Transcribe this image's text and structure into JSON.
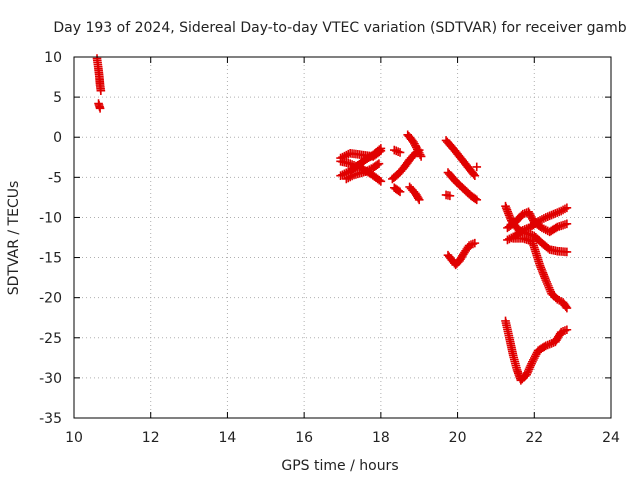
{
  "chart_data": {
    "type": "scatter",
    "title": "Day 193 of 2024, Sidereal Day-to-day VTEC variation (SDTVAR) for receiver gamb",
    "xlabel": "GPS time / hours",
    "ylabel": "SDTVAR / TECUs",
    "xlim": [
      10,
      24
    ],
    "ylim": [
      -35,
      10
    ],
    "xticks": [
      "10",
      "12",
      "14",
      "16",
      "18",
      "20",
      "22",
      "24"
    ],
    "yticks": [
      "10",
      "5",
      "0",
      "-5",
      "-10",
      "-15",
      "-20",
      "-25",
      "-30",
      "-35"
    ],
    "grid": true,
    "marker": "plus",
    "color": "#e00000",
    "tracks": [
      [
        [
          10.6,
          9.8
        ],
        [
          10.63,
          8.8
        ],
        [
          10.66,
          7.6
        ],
        [
          10.68,
          6.5
        ],
        [
          10.7,
          5.8
        ]
      ],
      [
        [
          10.64,
          4.2
        ],
        [
          10.68,
          3.6
        ]
      ],
      [
        [
          16.95,
          -2.6
        ],
        [
          17.2,
          -2.0
        ],
        [
          17.5,
          -2.2
        ],
        [
          17.8,
          -2.4
        ],
        [
          18.0,
          -1.7
        ]
      ],
      [
        [
          16.95,
          -4.8
        ],
        [
          17.2,
          -4.2
        ],
        [
          17.4,
          -3.5
        ],
        [
          17.6,
          -2.8
        ],
        [
          17.8,
          -2.2
        ],
        [
          18.0,
          -1.4
        ]
      ],
      [
        [
          16.95,
          -3.0
        ],
        [
          17.2,
          -3.3
        ],
        [
          17.5,
          -3.9
        ],
        [
          17.75,
          -4.6
        ],
        [
          18.0,
          -5.5
        ]
      ],
      [
        [
          17.1,
          -5.2
        ],
        [
          17.3,
          -4.7
        ],
        [
          17.6,
          -4.3
        ],
        [
          17.8,
          -3.8
        ],
        [
          17.95,
          -3.3
        ]
      ],
      [
        [
          18.35,
          -1.6
        ],
        [
          18.5,
          -1.9
        ]
      ],
      [
        [
          18.3,
          -5.2
        ],
        [
          18.45,
          -4.6
        ],
        [
          18.6,
          -3.8
        ],
        [
          18.75,
          -2.8
        ],
        [
          18.9,
          -2.0
        ],
        [
          19.0,
          -1.6
        ]
      ],
      [
        [
          18.7,
          0.3
        ],
        [
          18.85,
          -0.6
        ],
        [
          18.95,
          -1.5
        ],
        [
          19.05,
          -2.4
        ]
      ],
      [
        [
          18.35,
          -6.3
        ],
        [
          18.5,
          -6.8
        ]
      ],
      [
        [
          18.75,
          -6.2
        ],
        [
          18.9,
          -7.0
        ],
        [
          19.0,
          -7.8
        ]
      ],
      [
        [
          19.7,
          -0.4
        ],
        [
          19.9,
          -1.5
        ],
        [
          20.1,
          -2.7
        ],
        [
          20.3,
          -3.9
        ],
        [
          20.45,
          -4.8
        ]
      ],
      [
        [
          19.75,
          -4.4
        ],
        [
          19.95,
          -5.5
        ],
        [
          20.15,
          -6.4
        ],
        [
          20.35,
          -7.3
        ],
        [
          20.5,
          -7.8
        ]
      ],
      [
        [
          20.5,
          -3.7
        ]
      ],
      [
        [
          19.7,
          -7.2
        ],
        [
          19.8,
          -7.3
        ]
      ],
      [
        [
          19.75,
          -14.7
        ],
        [
          19.85,
          -15.3
        ],
        [
          19.95,
          -15.9
        ],
        [
          20.05,
          -15.4
        ],
        [
          20.15,
          -14.6
        ],
        [
          20.3,
          -13.5
        ],
        [
          20.45,
          -13.2
        ]
      ],
      [
        [
          21.25,
          -8.6
        ],
        [
          21.4,
          -10.4
        ],
        [
          21.6,
          -11.6
        ],
        [
          21.8,
          -12.0
        ],
        [
          22.0,
          -12.3
        ],
        [
          22.2,
          -13.2
        ],
        [
          22.4,
          -14.0
        ],
        [
          22.6,
          -14.2
        ],
        [
          22.85,
          -14.3
        ]
      ],
      [
        [
          21.3,
          -12.8
        ],
        [
          21.5,
          -12.3
        ],
        [
          21.7,
          -11.6
        ],
        [
          21.9,
          -11.2
        ],
        [
          22.1,
          -10.5
        ],
        [
          22.3,
          -10.0
        ],
        [
          22.5,
          -9.6
        ],
        [
          22.7,
          -9.2
        ],
        [
          22.85,
          -8.8
        ]
      ],
      [
        [
          21.3,
          -11.3
        ],
        [
          21.5,
          -10.6
        ],
        [
          21.7,
          -9.6
        ],
        [
          21.85,
          -9.3
        ],
        [
          22.0,
          -10.6
        ],
        [
          22.2,
          -11.3
        ],
        [
          22.4,
          -11.8
        ],
        [
          22.6,
          -11.2
        ],
        [
          22.85,
          -10.8
        ]
      ],
      [
        [
          21.45,
          -12.6
        ],
        [
          21.7,
          -12.6
        ],
        [
          21.95,
          -13.0
        ],
        [
          22.15,
          -16.0
        ],
        [
          22.3,
          -17.8
        ],
        [
          22.45,
          -19.5
        ],
        [
          22.6,
          -20.2
        ],
        [
          22.75,
          -20.6
        ],
        [
          22.85,
          -21.3
        ]
      ],
      [
        [
          21.25,
          -22.9
        ],
        [
          21.35,
          -25.0
        ],
        [
          21.45,
          -27.2
        ],
        [
          21.55,
          -29.0
        ],
        [
          21.65,
          -30.3
        ],
        [
          21.8,
          -29.6
        ],
        [
          21.95,
          -28.0
        ],
        [
          22.1,
          -26.6
        ],
        [
          22.3,
          -26.0
        ],
        [
          22.55,
          -25.5
        ],
        [
          22.7,
          -24.3
        ],
        [
          22.85,
          -24.0
        ]
      ]
    ]
  }
}
